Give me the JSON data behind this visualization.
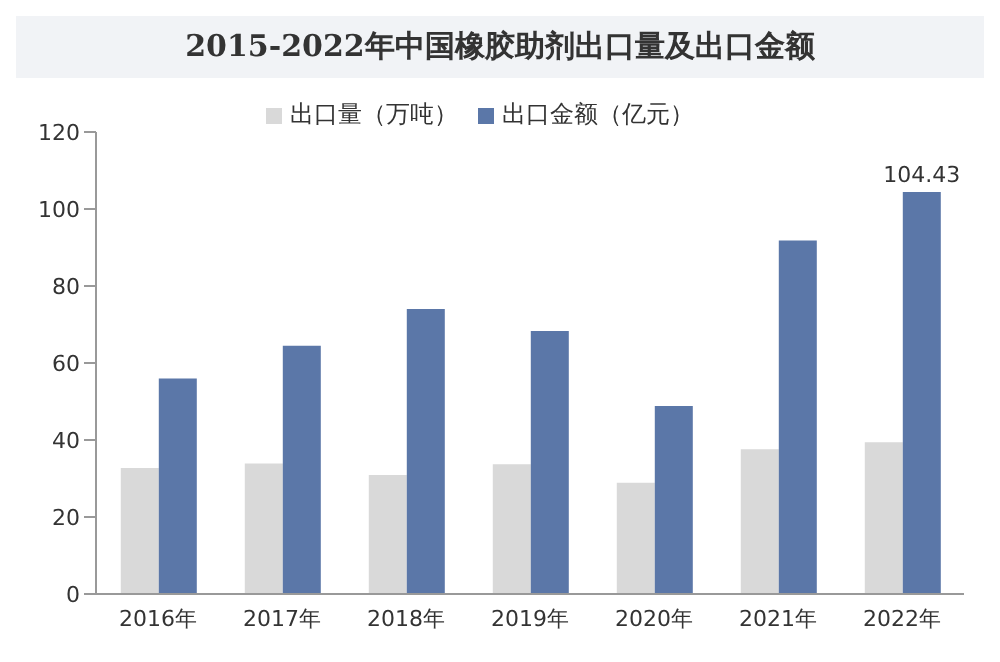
{
  "chart_data": {
    "type": "bar",
    "title": "2015-2022年中国橡胶助剂出口量及出口金额",
    "categories": [
      "2016年",
      "2017年",
      "2018年",
      "2019年",
      "2020年",
      "2021年",
      "2022年"
    ],
    "series": [
      {
        "name": "出口量（万吨）",
        "color": "#d9d9d9",
        "values": [
          32.7,
          33.9,
          30.9,
          33.7,
          28.9,
          37.6,
          39.4
        ]
      },
      {
        "name": "出口金额（亿元）",
        "color": "#5b77a8",
        "values": [
          56,
          64.5,
          74,
          68.3,
          48.8,
          91.8,
          104.43
        ],
        "value_labels": [
          null,
          null,
          null,
          null,
          null,
          null,
          "104.43"
        ]
      }
    ],
    "ylim": [
      0,
      120
    ],
    "yticks": [
      0,
      20,
      40,
      60,
      80,
      100,
      120
    ],
    "grid": false,
    "legend": "top"
  }
}
